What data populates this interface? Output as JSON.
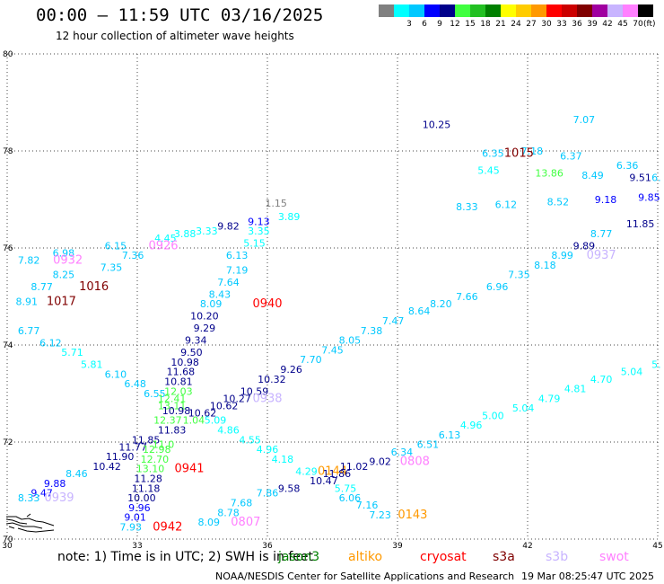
{
  "title": "00:00 – 11:59 UTC 03/16/2025",
  "subtitle": "12 hour collection of altimeter wave heights",
  "legend": {
    "unit": "(ft)",
    "items": [
      {
        "label": "",
        "color": "#808080"
      },
      {
        "label": "3",
        "color": "#00ffff"
      },
      {
        "label": "6",
        "color": "#00c8ff"
      },
      {
        "label": "9",
        "color": "#0000ff"
      },
      {
        "label": "12",
        "color": "#00008b"
      },
      {
        "label": "15",
        "color": "#40ff40"
      },
      {
        "label": "18",
        "color": "#22c022"
      },
      {
        "label": "21",
        "color": "#008000"
      },
      {
        "label": "24",
        "color": "#ffff00"
      },
      {
        "label": "27",
        "color": "#ffcc00"
      },
      {
        "label": "30",
        "color": "#ff9900"
      },
      {
        "label": "33",
        "color": "#ff0000"
      },
      {
        "label": "36",
        "color": "#cc0000"
      },
      {
        "label": "39",
        "color": "#800000"
      },
      {
        "label": "42",
        "color": "#a000a0"
      },
      {
        "label": "45",
        "color": "#c8b4ff"
      },
      {
        "label": "70",
        "color": "#ff80ff"
      },
      {
        "label": "",
        "color": "#000000"
      }
    ]
  },
  "note": "note: 1) Time is in UTC; 2) SWH is in feet",
  "satellites": [
    {
      "name": "jason3",
      "color": "#008000"
    },
    {
      "name": "altiko",
      "color": "#ff9900"
    },
    {
      "name": "cryosat",
      "color": "#ff0000"
    },
    {
      "name": "s3a",
      "color": "#800000"
    },
    {
      "name": "s3b",
      "color": "#c8b4ff"
    },
    {
      "name": "swot",
      "color": "#ff80ff"
    }
  ],
  "credit": "NOAA/NESDIS Center for Satellite Applications and Research",
  "generated": "19 Mar 08:25:47 UTC 2025",
  "chart_data": {
    "type": "scatter",
    "title": "00:00 – 11:59 UTC 03/16/2025",
    "xlabel": "",
    "ylabel": "",
    "xlim": [
      30,
      45
    ],
    "ylim": [
      70,
      80
    ],
    "x_ticks": [
      "30",
      "33",
      "36",
      "39",
      "42",
      "45"
    ],
    "y_ticks": [
      "70",
      "72",
      "74",
      "76",
      "78",
      "80"
    ],
    "grid": true,
    "points": [
      {
        "lon": 39.9,
        "lat": 78.55,
        "text": "10.25",
        "color": "#00008b"
      },
      {
        "lon": 43.3,
        "lat": 78.65,
        "text": "7.07",
        "color": "#00c8ff"
      },
      {
        "lon": 41.2,
        "lat": 77.95,
        "text": "6.35",
        "color": "#00c8ff"
      },
      {
        "lon": 42.1,
        "lat": 78.0,
        "text": "7.18",
        "color": "#00c8ff"
      },
      {
        "lon": 41.8,
        "lat": 77.95,
        "text": "1015",
        "color": "#800000",
        "size": 13
      },
      {
        "lon": 43.0,
        "lat": 77.9,
        "text": "6.37",
        "color": "#00c8ff"
      },
      {
        "lon": 44.3,
        "lat": 77.7,
        "text": "6.36",
        "color": "#00c8ff"
      },
      {
        "lon": 41.1,
        "lat": 77.6,
        "text": "5.45",
        "color": "#00ffff"
      },
      {
        "lon": 42.5,
        "lat": 77.55,
        "text": "13.86",
        "color": "#40ff40"
      },
      {
        "lon": 43.5,
        "lat": 77.5,
        "text": "8.49",
        "color": "#00c8ff"
      },
      {
        "lon": 44.6,
        "lat": 77.45,
        "text": "9.51",
        "color": "#00008b"
      },
      {
        "lon": 45.0,
        "lat": 77.45,
        "text": "6.",
        "color": "#00c8ff"
      },
      {
        "lon": 44.8,
        "lat": 77.05,
        "text": "9.85",
        "color": "#0000ff"
      },
      {
        "lon": 36.2,
        "lat": 76.93,
        "text": "1.15",
        "color": "#808080"
      },
      {
        "lon": 40.6,
        "lat": 76.85,
        "text": "8.33",
        "color": "#00c8ff"
      },
      {
        "lon": 41.5,
        "lat": 76.9,
        "text": "6.12",
        "color": "#00c8ff"
      },
      {
        "lon": 42.7,
        "lat": 76.95,
        "text": "8.52",
        "color": "#00c8ff"
      },
      {
        "lon": 43.8,
        "lat": 77.0,
        "text": "9.18",
        "color": "#0000ff"
      },
      {
        "lon": 36.5,
        "lat": 76.65,
        "text": "3.89",
        "color": "#00ffff"
      },
      {
        "lon": 44.6,
        "lat": 76.5,
        "text": "11.85",
        "color": "#00008b"
      },
      {
        "lon": 35.1,
        "lat": 76.45,
        "text": "9.82",
        "color": "#00008b"
      },
      {
        "lon": 35.8,
        "lat": 76.55,
        "text": "9.13",
        "color": "#0000ff"
      },
      {
        "lon": 35.8,
        "lat": 76.35,
        "text": "3.35",
        "color": "#00ffff"
      },
      {
        "lon": 34.6,
        "lat": 76.35,
        "text": "3.33",
        "color": "#00ffff"
      },
      {
        "lon": 34.1,
        "lat": 76.3,
        "text": "3.88",
        "color": "#00ffff"
      },
      {
        "lon": 33.65,
        "lat": 76.2,
        "text": "4.45",
        "color": "#00ffff"
      },
      {
        "lon": 43.7,
        "lat": 76.3,
        "text": "8.77",
        "color": "#00c8ff"
      },
      {
        "lon": 35.7,
        "lat": 76.1,
        "text": "5.15",
        "color": "#00ffff"
      },
      {
        "lon": 33.6,
        "lat": 76.05,
        "text": "0926",
        "color": "#ff80ff",
        "size": 13
      },
      {
        "lon": 32.5,
        "lat": 76.05,
        "text": "6.15",
        "color": "#00c8ff"
      },
      {
        "lon": 43.3,
        "lat": 76.05,
        "text": "9.89",
        "color": "#00008b"
      },
      {
        "lon": 31.3,
        "lat": 75.9,
        "text": "6.98",
        "color": "#00c8ff"
      },
      {
        "lon": 32.9,
        "lat": 75.85,
        "text": "7.36",
        "color": "#00c8ff"
      },
      {
        "lon": 35.3,
        "lat": 75.85,
        "text": "6.13",
        "color": "#00c8ff"
      },
      {
        "lon": 30.5,
        "lat": 75.75,
        "text": "7.82",
        "color": "#00c8ff"
      },
      {
        "lon": 31.4,
        "lat": 75.75,
        "text": "0932",
        "color": "#ff80ff",
        "size": 13
      },
      {
        "lon": 42.8,
        "lat": 75.85,
        "text": "8.99",
        "color": "#00c8ff"
      },
      {
        "lon": 43.7,
        "lat": 75.85,
        "text": "0937",
        "color": "#c8b4ff",
        "size": 13
      },
      {
        "lon": 42.4,
        "lat": 75.65,
        "text": "8.18",
        "color": "#00c8ff"
      },
      {
        "lon": 32.4,
        "lat": 75.6,
        "text": "7.35",
        "color": "#00c8ff"
      },
      {
        "lon": 35.3,
        "lat": 75.55,
        "text": "7.19",
        "color": "#00c8ff"
      },
      {
        "lon": 31.3,
        "lat": 75.45,
        "text": "8.25",
        "color": "#00c8ff"
      },
      {
        "lon": 41.8,
        "lat": 75.45,
        "text": "7.35",
        "color": "#00c8ff"
      },
      {
        "lon": 35.1,
        "lat": 75.3,
        "text": "7.64",
        "color": "#00c8ff"
      },
      {
        "lon": 30.8,
        "lat": 75.2,
        "text": "8.77",
        "color": "#00c8ff"
      },
      {
        "lon": 32.0,
        "lat": 75.2,
        "text": "1016",
        "color": "#800000",
        "size": 13
      },
      {
        "lon": 41.3,
        "lat": 75.2,
        "text": "6.96",
        "color": "#00c8ff"
      },
      {
        "lon": 34.9,
        "lat": 75.05,
        "text": "8.43",
        "color": "#00c8ff"
      },
      {
        "lon": 40.6,
        "lat": 75.0,
        "text": "7.66",
        "color": "#00c8ff"
      },
      {
        "lon": 30.45,
        "lat": 74.9,
        "text": "8.91",
        "color": "#00c8ff"
      },
      {
        "lon": 31.25,
        "lat": 74.9,
        "text": "1017",
        "color": "#800000",
        "size": 13
      },
      {
        "lon": 34.7,
        "lat": 74.85,
        "text": "8.09",
        "color": "#00c8ff"
      },
      {
        "lon": 36.0,
        "lat": 74.85,
        "text": "0940",
        "color": "#ff0000",
        "size": 13
      },
      {
        "lon": 40.0,
        "lat": 74.85,
        "text": "8.20",
        "color": "#00c8ff"
      },
      {
        "lon": 39.5,
        "lat": 74.7,
        "text": "8.64",
        "color": "#00c8ff"
      },
      {
        "lon": 34.55,
        "lat": 74.6,
        "text": "10.20",
        "color": "#00008b"
      },
      {
        "lon": 38.9,
        "lat": 74.5,
        "text": "7.47",
        "color": "#00c8ff"
      },
      {
        "lon": 34.55,
        "lat": 74.35,
        "text": "9.29",
        "color": "#00008b"
      },
      {
        "lon": 38.4,
        "lat": 74.3,
        "text": "7.38",
        "color": "#00c8ff"
      },
      {
        "lon": 30.5,
        "lat": 74.3,
        "text": "6.77",
        "color": "#00c8ff"
      },
      {
        "lon": 34.35,
        "lat": 74.1,
        "text": "9.34",
        "color": "#00008b"
      },
      {
        "lon": 37.9,
        "lat": 74.1,
        "text": "8.05",
        "color": "#00c8ff"
      },
      {
        "lon": 31.0,
        "lat": 74.05,
        "text": "6.12",
        "color": "#00c8ff"
      },
      {
        "lon": 34.25,
        "lat": 73.85,
        "text": "9.50",
        "color": "#00008b"
      },
      {
        "lon": 37.5,
        "lat": 73.9,
        "text": "7.45",
        "color": "#00c8ff"
      },
      {
        "lon": 31.5,
        "lat": 73.85,
        "text": "5.71",
        "color": "#00ffff"
      },
      {
        "lon": 37.0,
        "lat": 73.7,
        "text": "7.70",
        "color": "#00c8ff"
      },
      {
        "lon": 34.1,
        "lat": 73.65,
        "text": "10.98",
        "color": "#00008b"
      },
      {
        "lon": 31.95,
        "lat": 73.6,
        "text": "5.81",
        "color": "#00ffff"
      },
      {
        "lon": 34.0,
        "lat": 73.45,
        "text": "11.68",
        "color": "#00008b"
      },
      {
        "lon": 36.55,
        "lat": 73.5,
        "text": "9.26",
        "color": "#00008b"
      },
      {
        "lon": 32.5,
        "lat": 73.4,
        "text": "6.10",
        "color": "#00c8ff"
      },
      {
        "lon": 33.95,
        "lat": 73.25,
        "text": "10.81",
        "color": "#00008b"
      },
      {
        "lon": 36.1,
        "lat": 73.3,
        "text": "10.32",
        "color": "#00008b"
      },
      {
        "lon": 32.95,
        "lat": 73.2,
        "text": "6.48",
        "color": "#00c8ff"
      },
      {
        "lon": 33.95,
        "lat": 73.05,
        "text": "12.03",
        "color": "#40ff40"
      },
      {
        "lon": 35.7,
        "lat": 73.05,
        "text": "10.59",
        "color": "#00008b"
      },
      {
        "lon": 33.4,
        "lat": 73.0,
        "text": "6.55",
        "color": "#00c8ff"
      },
      {
        "lon": 33.8,
        "lat": 72.9,
        "text": "12.41",
        "color": "#40ff40"
      },
      {
        "lon": 35.3,
        "lat": 72.9,
        "text": "10.27",
        "color": "#00008b"
      },
      {
        "lon": 36.0,
        "lat": 72.9,
        "text": "0938",
        "color": "#c8b4ff",
        "size": 13
      },
      {
        "lon": 33.8,
        "lat": 72.75,
        "text": "13.11",
        "color": "#40ff40"
      },
      {
        "lon": 35.0,
        "lat": 72.75,
        "text": "10.62",
        "color": "#00008b"
      },
      {
        "lon": 33.9,
        "lat": 72.65,
        "text": "10.98",
        "color": "#00008b"
      },
      {
        "lon": 34.5,
        "lat": 72.6,
        "text": "10.62",
        "color": "#00008b"
      },
      {
        "lon": 33.7,
        "lat": 72.45,
        "text": "12.37",
        "color": "#40ff40"
      },
      {
        "lon": 34.3,
        "lat": 72.45,
        "text": "1.04",
        "color": "#40ff40"
      },
      {
        "lon": 34.8,
        "lat": 72.45,
        "text": "5.09",
        "color": "#00ffff"
      },
      {
        "lon": 33.8,
        "lat": 72.25,
        "text": "11.83",
        "color": "#00008b"
      },
      {
        "lon": 35.1,
        "lat": 72.25,
        "text": "4.86",
        "color": "#00ffff"
      },
      {
        "lon": 33.2,
        "lat": 72.05,
        "text": "11.85",
        "color": "#00008b"
      },
      {
        "lon": 33.6,
        "lat": 71.95,
        "text": "11.0",
        "color": "#40ff40"
      },
      {
        "lon": 35.6,
        "lat": 72.05,
        "text": "4.55",
        "color": "#00ffff"
      },
      {
        "lon": 32.9,
        "lat": 71.9,
        "text": "11.77",
        "color": "#00008b"
      },
      {
        "lon": 33.45,
        "lat": 71.85,
        "text": "12.98",
        "color": "#40ff40"
      },
      {
        "lon": 36.0,
        "lat": 71.85,
        "text": "4.96",
        "color": "#00ffff"
      },
      {
        "lon": 32.6,
        "lat": 71.7,
        "text": "11.90",
        "color": "#00008b"
      },
      {
        "lon": 33.4,
        "lat": 71.65,
        "text": "12.70",
        "color": "#40ff40"
      },
      {
        "lon": 36.35,
        "lat": 71.65,
        "text": "4.18",
        "color": "#00ffff"
      },
      {
        "lon": 33.3,
        "lat": 71.45,
        "text": "13.10",
        "color": "#40ff40"
      },
      {
        "lon": 34.2,
        "lat": 71.45,
        "text": "0941",
        "color": "#ff0000",
        "size": 13
      },
      {
        "lon": 32.3,
        "lat": 71.5,
        "text": "10.42",
        "color": "#00008b"
      },
      {
        "lon": 33.25,
        "lat": 71.25,
        "text": "11.28",
        "color": "#00008b"
      },
      {
        "lon": 31.6,
        "lat": 71.35,
        "text": "8.46",
        "color": "#00c8ff"
      },
      {
        "lon": 31.1,
        "lat": 71.15,
        "text": "9.88",
        "color": "#0000ff"
      },
      {
        "lon": 33.2,
        "lat": 71.05,
        "text": "11.18",
        "color": "#00008b"
      },
      {
        "lon": 30.8,
        "lat": 70.95,
        "text": "9.47",
        "color": "#0000ff"
      },
      {
        "lon": 33.1,
        "lat": 70.85,
        "text": "10.00",
        "color": "#00008b"
      },
      {
        "lon": 30.5,
        "lat": 70.85,
        "text": "8.33",
        "color": "#00c8ff"
      },
      {
        "lon": 31.2,
        "lat": 70.85,
        "text": "0939",
        "color": "#c8b4ff",
        "size": 13
      },
      {
        "lon": 33.05,
        "lat": 70.65,
        "text": "9.96",
        "color": "#0000ff"
      },
      {
        "lon": 32.95,
        "lat": 70.45,
        "text": "9.01",
        "color": "#0000ff"
      },
      {
        "lon": 32.85,
        "lat": 70.25,
        "text": "7.93",
        "color": "#00c8ff"
      },
      {
        "lon": 33.7,
        "lat": 70.25,
        "text": "0942",
        "color": "#ff0000",
        "size": 13
      },
      {
        "lon": 36.9,
        "lat": 71.4,
        "text": "4.29",
        "color": "#00ffff"
      },
      {
        "lon": 37.5,
        "lat": 71.4,
        "text": "0144",
        "color": "#ff9900",
        "size": 13
      },
      {
        "lon": 37.6,
        "lat": 71.35,
        "text": "11.86",
        "color": "#00008b"
      },
      {
        "lon": 38.0,
        "lat": 71.5,
        "text": "11.02",
        "color": "#00008b"
      },
      {
        "lon": 37.3,
        "lat": 71.2,
        "text": "10.47",
        "color": "#00008b"
      },
      {
        "lon": 36.5,
        "lat": 71.05,
        "text": "9.58",
        "color": "#00008b"
      },
      {
        "lon": 37.8,
        "lat": 71.05,
        "text": "5.75",
        "color": "#00ffff"
      },
      {
        "lon": 36.0,
        "lat": 70.95,
        "text": "7.86",
        "color": "#00c8ff"
      },
      {
        "lon": 37.9,
        "lat": 70.85,
        "text": "6.06",
        "color": "#00c8ff"
      },
      {
        "lon": 35.4,
        "lat": 70.75,
        "text": "7.68",
        "color": "#00c8ff"
      },
      {
        "lon": 38.3,
        "lat": 70.7,
        "text": "7.16",
        "color": "#00c8ff"
      },
      {
        "lon": 35.1,
        "lat": 70.55,
        "text": "8.78",
        "color": "#00c8ff"
      },
      {
        "lon": 34.65,
        "lat": 70.35,
        "text": "8.09",
        "color": "#00c8ff"
      },
      {
        "lon": 35.5,
        "lat": 70.35,
        "text": "0807",
        "color": "#ff80ff",
        "size": 13
      },
      {
        "lon": 38.6,
        "lat": 70.5,
        "text": "7.23",
        "color": "#00c8ff"
      },
      {
        "lon": 39.35,
        "lat": 70.5,
        "text": "0143",
        "color": "#ff9900",
        "size": 13
      },
      {
        "lon": 38.6,
        "lat": 71.6,
        "text": "9.02",
        "color": "#00008b"
      },
      {
        "lon": 39.1,
        "lat": 71.8,
        "text": "6.34",
        "color": "#00c8ff"
      },
      {
        "lon": 39.4,
        "lat": 71.6,
        "text": "0808",
        "color": "#ff80ff",
        "size": 13
      },
      {
        "lon": 39.7,
        "lat": 71.95,
        "text": "6.51",
        "color": "#00c8ff"
      },
      {
        "lon": 40.2,
        "lat": 72.15,
        "text": "6.13",
        "color": "#00c8ff"
      },
      {
        "lon": 40.7,
        "lat": 72.35,
        "text": "4.96",
        "color": "#00ffff"
      },
      {
        "lon": 41.2,
        "lat": 72.55,
        "text": "5.00",
        "color": "#00ffff"
      },
      {
        "lon": 41.9,
        "lat": 72.7,
        "text": "5.04",
        "color": "#00ffff"
      },
      {
        "lon": 42.5,
        "lat": 72.9,
        "text": "4.79",
        "color": "#00ffff"
      },
      {
        "lon": 43.1,
        "lat": 73.1,
        "text": "4.81",
        "color": "#00ffff"
      },
      {
        "lon": 43.7,
        "lat": 73.3,
        "text": "4.70",
        "color": "#00ffff"
      },
      {
        "lon": 44.4,
        "lat": 73.45,
        "text": "5.04",
        "color": "#00ffff"
      },
      {
        "lon": 45.0,
        "lat": 73.6,
        "text": "5.",
        "color": "#00ffff"
      }
    ]
  }
}
